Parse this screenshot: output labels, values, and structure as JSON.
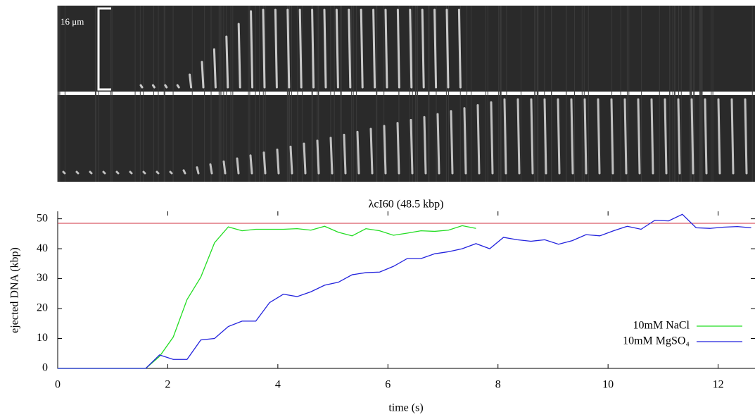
{
  "chart_data": {
    "type": "line",
    "scale_bar_label": "16 μm",
    "title": "λcI60 (48.5 kbp)",
    "x_label": "time (s)",
    "y_label": "ejected DNA (kbp)",
    "xlim": [
      0,
      12.67
    ],
    "ylim": [
      0,
      52.5
    ],
    "xticks": [
      0,
      2,
      4,
      6,
      8,
      10,
      12
    ],
    "yticks": [
      0,
      10,
      20,
      30,
      40,
      50
    ],
    "reference_line": {
      "value": 48.5,
      "color": "#d03040"
    },
    "legend": "lower right",
    "series": [
      {
        "name": "10mM NaCl",
        "color": "#22dd22",
        "x": [
          0,
          1.6,
          1.85,
          2.1,
          2.35,
          2.6,
          2.85,
          3.1,
          3.35,
          3.6,
          3.85,
          4.1,
          4.35,
          4.6,
          4.85,
          5.1,
          5.35,
          5.6,
          5.85,
          6.1,
          6.35,
          6.6,
          6.85,
          7.1,
          7.35,
          7.6
        ],
        "values": [
          0,
          0,
          4,
          10.5,
          23,
          30.5,
          42,
          47.3,
          46,
          46.5,
          46.5,
          46.5,
          46.7,
          46.2,
          47.5,
          45.5,
          44.3,
          46.7,
          46,
          44.5,
          45.2,
          46,
          45.8,
          46.2,
          47.7,
          46.8
        ]
      },
      {
        "name": "10mM MgSO₄",
        "color": "#2222dd",
        "x": [
          0,
          1.6,
          1.85,
          2.1,
          2.35,
          2.6,
          2.85,
          3.1,
          3.35,
          3.6,
          3.85,
          4.1,
          4.35,
          4.6,
          4.85,
          5.1,
          5.35,
          5.6,
          5.85,
          6.1,
          6.35,
          6.6,
          6.85,
          7.1,
          7.35,
          7.6,
          7.85,
          8.1,
          8.35,
          8.6,
          8.85,
          9.1,
          9.35,
          9.6,
          9.85,
          10.1,
          10.35,
          10.6,
          10.85,
          11.1,
          11.35,
          11.6,
          11.85,
          12.1,
          12.35,
          12.6
        ],
        "values": [
          0,
          0,
          4.5,
          3,
          3,
          9.5,
          10,
          14,
          15.8,
          15.8,
          22,
          24.8,
          24,
          25.6,
          27.8,
          28.8,
          31.3,
          32,
          32.2,
          34.1,
          36.7,
          36.7,
          38.3,
          39,
          40,
          41.7,
          40,
          43.8,
          43,
          42.5,
          43,
          41.5,
          42.7,
          44.7,
          44.3,
          46,
          47.5,
          46.5,
          49.5,
          49.3,
          51.5,
          47,
          46.8,
          47.2,
          47.4,
          47
        ]
      }
    ]
  }
}
